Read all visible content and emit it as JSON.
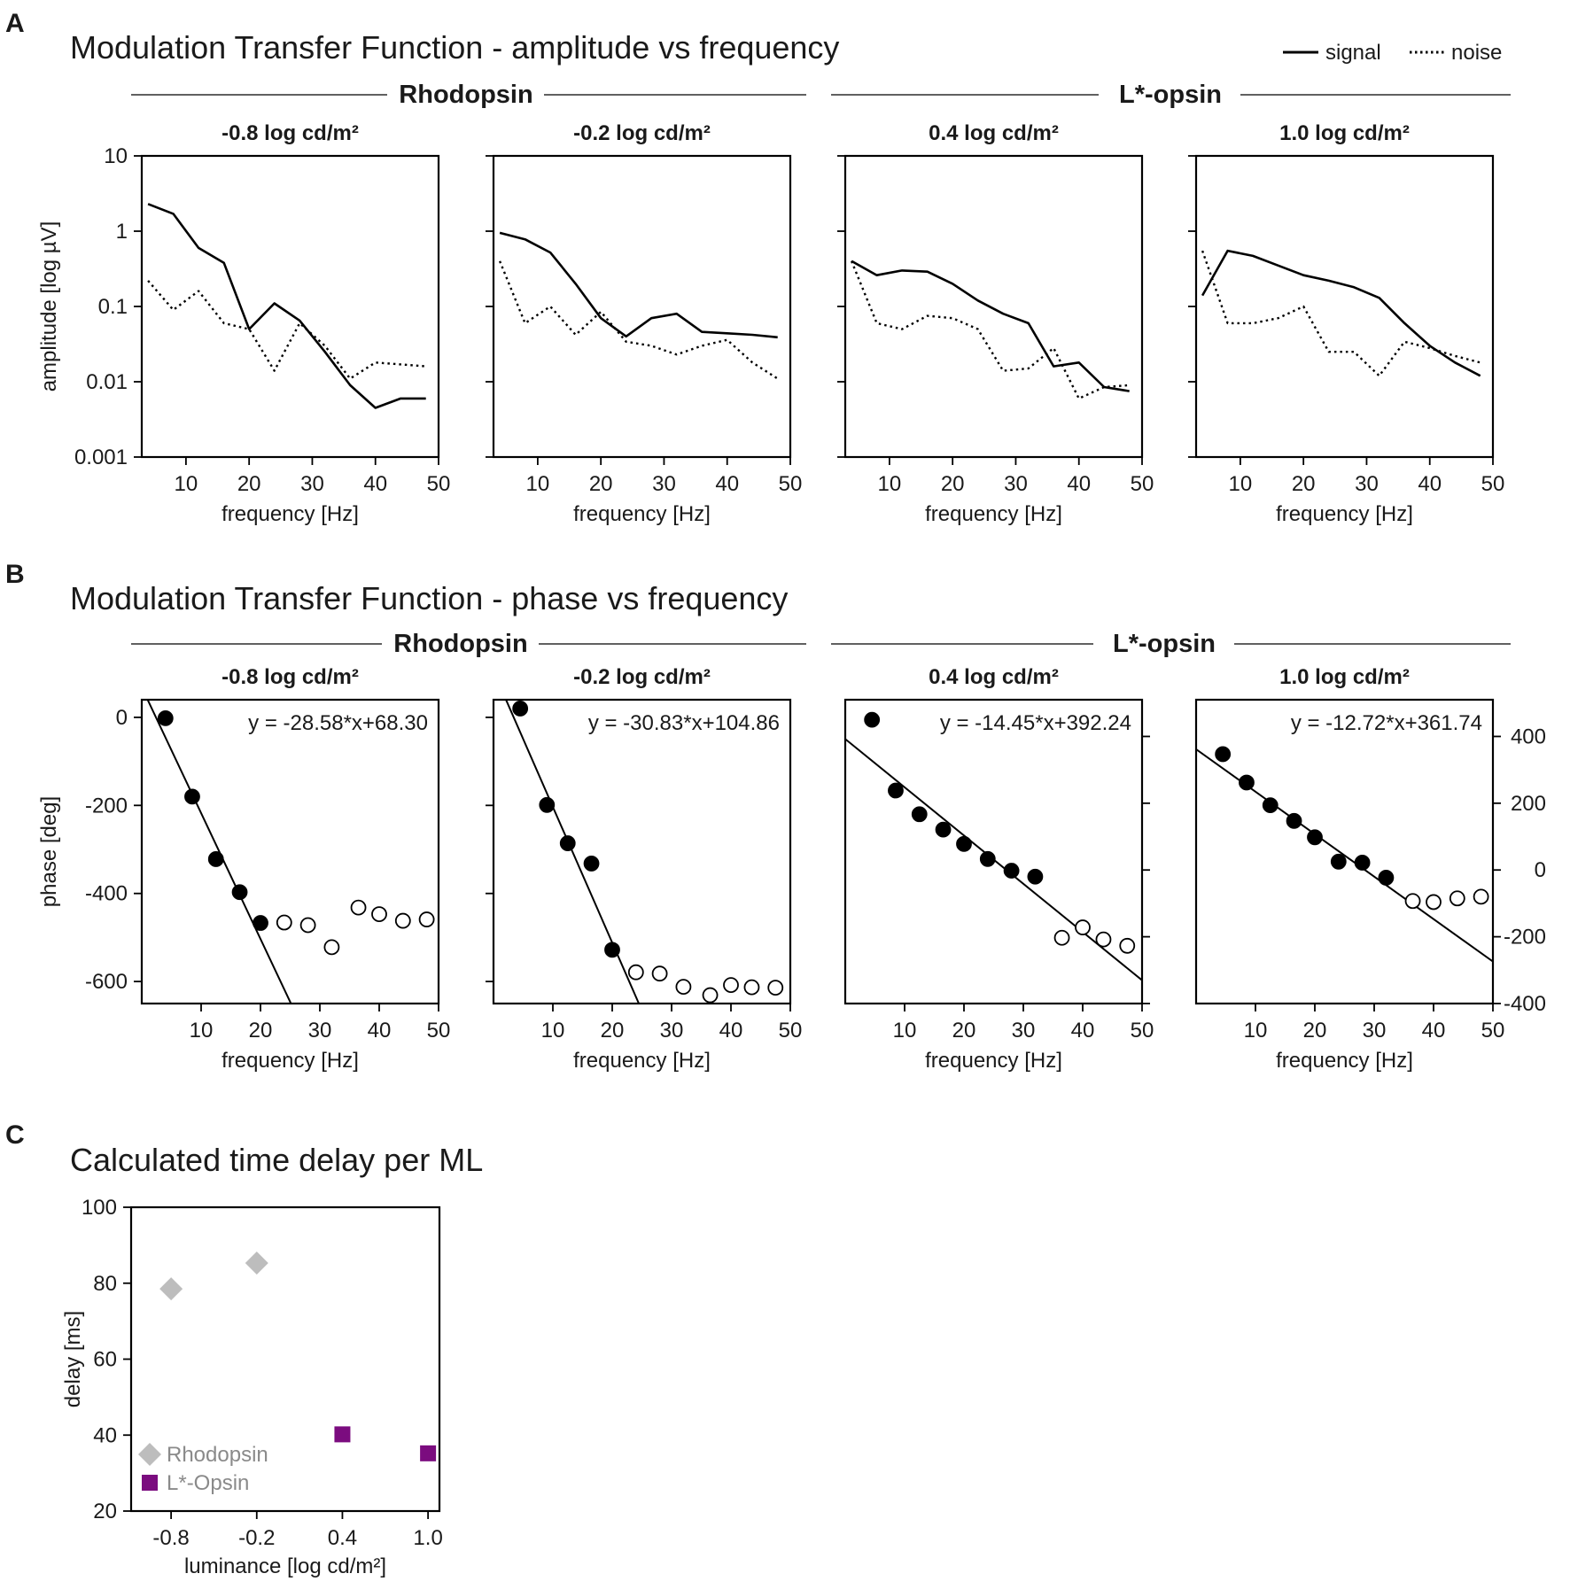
{
  "panels": {
    "a": {
      "letter": "A",
      "title": "Modulation Transfer Function - amplitude vs frequency"
    },
    "b": {
      "letter": "B",
      "title": "Modulation Transfer Function - phase vs frequency"
    },
    "c": {
      "letter": "C",
      "title": "Calculated time delay per ML"
    }
  },
  "groups": {
    "rhodopsin": "Rhodopsin",
    "lopsin": "L*-opsin"
  },
  "legend_a": {
    "signal": "signal",
    "noise": "noise"
  },
  "colors": {
    "rhodopsin": "#bdbdbd",
    "lopsin": "#7b0c7f",
    "line": "#000000"
  },
  "chart_data": [
    {
      "id": "amplitude",
      "type": "line",
      "title": "Modulation Transfer Function - amplitude vs frequency",
      "xlabel": "frequency [Hz]",
      "ylabel": "amplitude [log µV]",
      "xlim": [
        3,
        50
      ],
      "xticks": [
        "10",
        "20",
        "30",
        "40",
        "50"
      ],
      "ylim": [
        0.001,
        10
      ],
      "yscale": "log",
      "yticks": [
        "0.001",
        "0.01",
        "0.1",
        "1",
        "10"
      ],
      "legend": [
        "signal",
        "noise"
      ],
      "legend_position": "top-right",
      "x": [
        4,
        8,
        12,
        16,
        20,
        24,
        28,
        32,
        36,
        40,
        44,
        48
      ],
      "subplots": [
        {
          "title": "-0.8 log cd/m²",
          "group": "Rhodopsin",
          "series": [
            {
              "name": "signal",
              "values": [
                2.3,
                1.7,
                0.6,
                0.38,
                0.05,
                0.11,
                0.065,
                0.025,
                0.009,
                0.0045,
                0.006,
                0.006
              ]
            },
            {
              "name": "noise",
              "values": [
                0.22,
                0.09,
                0.16,
                0.06,
                0.05,
                0.014,
                0.06,
                0.03,
                0.011,
                0.018,
                0.017,
                0.016
              ]
            }
          ]
        },
        {
          "title": "-0.2 log cd/m²",
          "group": "Rhodopsin",
          "series": [
            {
              "name": "signal",
              "values": [
                0.95,
                0.78,
                0.52,
                0.2,
                0.07,
                0.04,
                0.07,
                0.08,
                0.046,
                0.044,
                0.042,
                0.039
              ]
            },
            {
              "name": "noise",
              "values": [
                0.4,
                0.06,
                0.1,
                0.042,
                0.085,
                0.034,
                0.03,
                0.023,
                0.03,
                0.036,
                0.018,
                0.011
              ]
            }
          ]
        },
        {
          "title": "0.4 log cd/m²",
          "group": "L*-opsin",
          "series": [
            {
              "name": "signal",
              "values": [
                0.4,
                0.26,
                0.3,
                0.29,
                0.2,
                0.12,
                0.08,
                0.06,
                0.016,
                0.018,
                0.0085,
                0.0075
              ]
            },
            {
              "name": "noise",
              "values": [
                0.4,
                0.06,
                0.05,
                0.075,
                0.07,
                0.05,
                0.014,
                0.015,
                0.028,
                0.006,
                0.0085,
                0.009
              ]
            }
          ]
        },
        {
          "title": "1.0 log cd/m²",
          "group": "L*-opsin",
          "series": [
            {
              "name": "signal",
              "values": [
                0.14,
                0.55,
                0.47,
                0.35,
                0.26,
                0.22,
                0.18,
                0.13,
                0.06,
                0.03,
                0.018,
                0.012
              ]
            },
            {
              "name": "noise",
              "values": [
                0.55,
                0.06,
                0.06,
                0.07,
                0.1,
                0.025,
                0.025,
                0.012,
                0.034,
                0.028,
                0.022,
                0.018
              ]
            }
          ]
        }
      ]
    },
    {
      "id": "phase",
      "type": "scatter",
      "title": "Modulation Transfer Function - phase vs frequency",
      "xlabel": "frequency [Hz]",
      "ylabel": "phase [deg]",
      "xlim": [
        0,
        50
      ],
      "xticks": [
        "10",
        "20",
        "30",
        "40",
        "50"
      ],
      "ylim_left": [
        -650,
        40
      ],
      "yticks_left": [
        "0",
        "-200",
        "-400",
        "-600"
      ],
      "ylim_right": [
        -400,
        510
      ],
      "yticks_right": [
        "400",
        "200",
        "0",
        "-200",
        "-400"
      ],
      "subplots": [
        {
          "title": "-0.8 log cd/m²",
          "group": "Rhodopsin",
          "axis": "left",
          "fit": {
            "equation": "y = -28.58*x+68.30",
            "slope": -28.58,
            "intercept": 68.3
          },
          "points": {
            "x": [
              4,
              8.5,
              12.5,
              16.5,
              20,
              24,
              28,
              32,
              36.5,
              40,
              44,
              48
            ],
            "y": [
              -2,
              -180,
              -322,
              -397,
              -467,
              -466,
              -472,
              -522,
              -432,
              -447,
              -462,
              -459
            ],
            "filled": [
              true,
              true,
              true,
              true,
              true,
              false,
              false,
              false,
              false,
              false,
              false,
              false
            ]
          }
        },
        {
          "title": "-0.2 log cd/m²",
          "group": "Rhodopsin",
          "axis": "left",
          "fit": {
            "equation": "y = -30.83*x+104.86",
            "slope": -30.83,
            "intercept": 104.86
          },
          "points": {
            "x": [
              4.5,
              9,
              12.5,
              16.5,
              20,
              24,
              28,
              32,
              36.5,
              40,
              43.5,
              47.5
            ],
            "y": [
              20,
              -199,
              -286,
              -332,
              -528,
              -579,
              -582,
              -612,
              -631,
              -608,
              -613,
              -614
            ],
            "filled": [
              true,
              true,
              true,
              true,
              true,
              false,
              false,
              false,
              false,
              false,
              false,
              false
            ]
          }
        },
        {
          "title": "0.4 log cd/m²",
          "group": "L*-opsin",
          "axis": "right",
          "fit": {
            "equation": "y = -14.45*x+392.24",
            "slope": -14.45,
            "intercept": 392.24
          },
          "points": {
            "x": [
              4.5,
              8.5,
              12.5,
              16.5,
              20,
              24,
              28,
              32,
              36.5,
              40,
              43.5,
              47.5
            ],
            "y": [
              450,
              238,
              167,
              121,
              78,
              33,
              -2,
              -20,
              -203,
              -172,
              -208,
              -227
            ],
            "filled": [
              true,
              true,
              true,
              true,
              true,
              true,
              true,
              true,
              false,
              false,
              false,
              false
            ]
          }
        },
        {
          "title": "1.0 log cd/m²",
          "group": "L*-opsin",
          "axis": "right",
          "fit": {
            "equation": "y = -12.72*x+361.74",
            "slope": -12.72,
            "intercept": 361.74
          },
          "points": {
            "x": [
              4.5,
              8.5,
              12.5,
              16.5,
              20,
              24,
              28,
              32,
              36.5,
              40,
              44,
              48
            ],
            "y": [
              347,
              262,
              194,
              147,
              98,
              25,
              22,
              -23,
              -93,
              -96,
              -85,
              -80
            ],
            "filled": [
              true,
              true,
              true,
              true,
              true,
              true,
              true,
              true,
              false,
              false,
              false,
              false
            ]
          }
        }
      ]
    },
    {
      "id": "delay",
      "type": "scatter",
      "title": "Calculated time delay per ML",
      "xlabel": "luminance [log cd/m²]",
      "ylabel": "delay [ms]",
      "xlim": [
        -1.08,
        1.08
      ],
      "xticks": [
        "-0.8",
        "-0.2",
        "0.4",
        "1.0"
      ],
      "ylim": [
        20,
        100
      ],
      "yticks": [
        "20",
        "40",
        "60",
        "80",
        "100"
      ],
      "legend_position": "bottom-left",
      "series": [
        {
          "name": "Rhodopsin",
          "marker": "diamond",
          "x": [
            -0.8,
            -0.2
          ],
          "y": [
            78.5,
            85.3
          ]
        },
        {
          "name": "L*-Opsin",
          "marker": "square",
          "x": [
            0.4,
            1.0
          ],
          "y": [
            40.2,
            35.2
          ]
        }
      ]
    }
  ]
}
